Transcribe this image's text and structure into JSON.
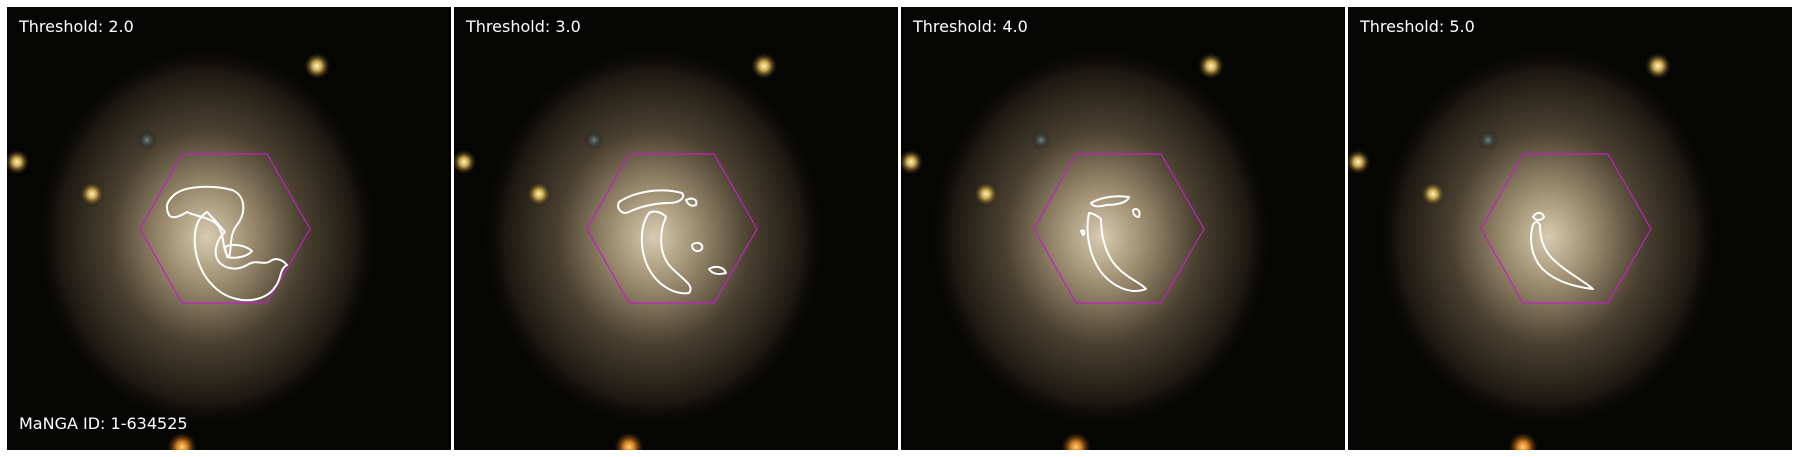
{
  "figure": {
    "manga_id_label": "MaNGA ID: 1-634525",
    "colors": {
      "hexagon": "#c21fc4",
      "contour": "#ffffff",
      "background": "#050504",
      "separator": "#ffffff"
    },
    "panels": [
      {
        "threshold_label": "Threshold: 2.0"
      },
      {
        "threshold_label": "Threshold: 3.0"
      },
      {
        "threshold_label": "Threshold: 4.0"
      },
      {
        "threshold_label": "Threshold: 5.0"
      }
    ]
  }
}
